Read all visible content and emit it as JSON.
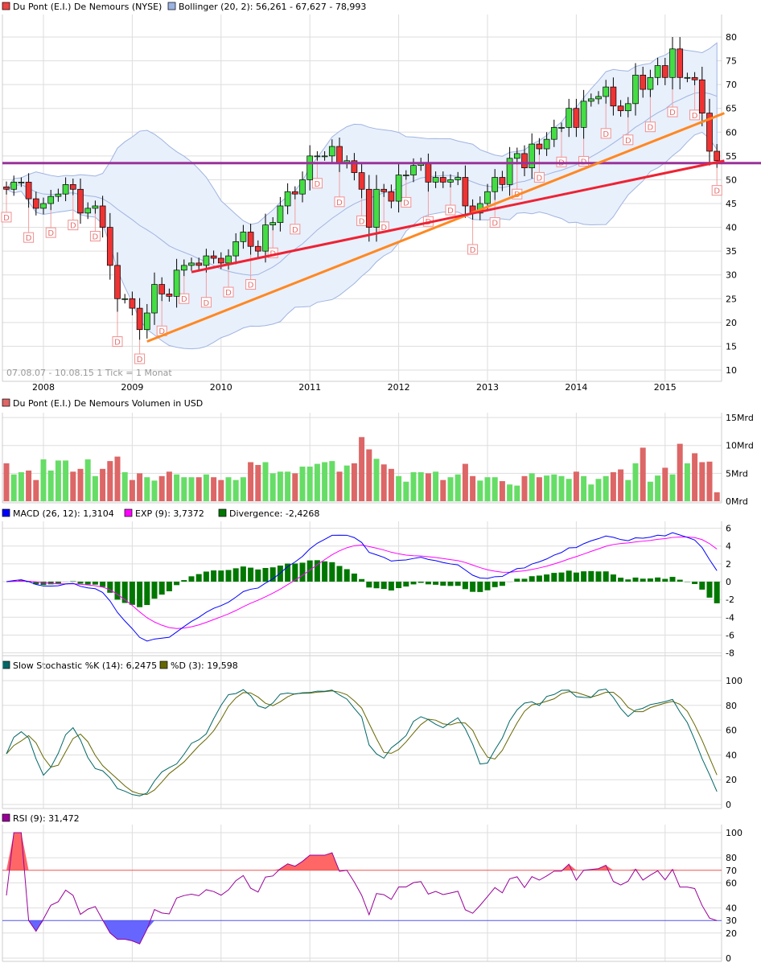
{
  "legends": {
    "price": "Du Pont (E.I.) De Nemours (NYSE)",
    "bollinger": "Bollinger (20, 2): 56,261 - 67,627 - 78,993",
    "volume": "Du Pont (E.I.) De Nemours Volumen in USD",
    "macd": "MACD (26, 12): 1,3104",
    "exp": "EXP (9): 3,7372",
    "divergence": "Divergence: -2,4268",
    "stoch_k": "Slow Stochastic %K (14): 6,2475",
    "stoch_d": "%D (3): 19,598",
    "rsi": "RSI (9): 31,472"
  },
  "range_note": "07.08.07 - 10.08.15   1 Tick = 1 Monat",
  "dividend_marker": "D",
  "colors": {
    "up": "#44dd44",
    "down": "#ee3333",
    "vol_up": "#66dd66",
    "vol_down": "#dd6666",
    "band_fill": "#e8f0fc",
    "band_line": "#a0b4e0",
    "macd": "#0000ff",
    "exp": "#ff00ff",
    "divergence": "#007700",
    "stoch_k": "#006666",
    "stoch_d": "#666600",
    "rsi": "#990099",
    "support": "#993399",
    "trend_orange": "#ff8822",
    "trend_red": "#ee2233"
  },
  "chart_data": [
    {
      "type": "candlestick",
      "start_month": "2007-08",
      "frequency": "monthly",
      "x_ticks": [
        "2008",
        "2009",
        "2010",
        "2011",
        "2012",
        "2013",
        "2014",
        "2015"
      ],
      "y_ticks": [
        10,
        15,
        20,
        25,
        30,
        35,
        40,
        45,
        50,
        55,
        60,
        65,
        70,
        75,
        80
      ],
      "ylim": [
        10,
        82
      ],
      "close": [
        48,
        49.5,
        49.5,
        46,
        44,
        45,
        46.5,
        47,
        49,
        48,
        43,
        44,
        44.5,
        40,
        32,
        25,
        25,
        23,
        18.5,
        22,
        28,
        26,
        25.5,
        31,
        32,
        32.5,
        32,
        34,
        33.5,
        32.5,
        34,
        37,
        39,
        36,
        35,
        40.5,
        41,
        44.5,
        47.5,
        47,
        50,
        55,
        55,
        55,
        57,
        53.5,
        54,
        51.5,
        48,
        40,
        48,
        47.5,
        45.5,
        51,
        51,
        53,
        53.5,
        49.5,
        50.5,
        49.5,
        50,
        50.5,
        44.5,
        43,
        45,
        47.5,
        50.5,
        49,
        54.5,
        55.5,
        52.5,
        57.5,
        56.5,
        58.5,
        61,
        61,
        65,
        61,
        66.5,
        67,
        67.5,
        69.5,
        65.5,
        64.5,
        66,
        72,
        69,
        71.5,
        74,
        71.5,
        77.5,
        71.5,
        71.5,
        71,
        64,
        56,
        54
      ],
      "overlays": {
        "bollinger": {
          "period": 20,
          "stddev": 2
        },
        "horizontal_line": 53.5,
        "trendlines": [
          {
            "color": "orange",
            "from": [
              "2009-03",
              16
            ],
            "to": [
              "2015-09",
              64
            ]
          },
          {
            "color": "red",
            "from": [
              "2009-09",
              30.6
            ],
            "to": [
              "2015-09",
              54
            ]
          }
        ]
      }
    },
    {
      "type": "bar",
      "title": "Du Pont (E.I.) De Nemours Volumen in USD",
      "unit": "Mrd",
      "y_ticks": [
        "0Mrd",
        "5Mrd",
        "10Mrd",
        "15Mrd"
      ],
      "ylim": [
        0,
        15
      ],
      "values": [
        6.8,
        4.8,
        5.2,
        5.5,
        3.8,
        7.5,
        5.5,
        7.3,
        7.3,
        5.3,
        5.8,
        7.5,
        4.5,
        5.8,
        7.2,
        8.0,
        5.2,
        3.8,
        5.0,
        4.3,
        3.7,
        4.5,
        5.3,
        4.8,
        4.3,
        4.3,
        4.3,
        4.8,
        4.3,
        3.8,
        4.3,
        3.8,
        4.3,
        7.0,
        6.5,
        7.0,
        5.0,
        5.3,
        5.3,
        5.0,
        6.2,
        6.2,
        6.7,
        7.0,
        7.2,
        5.3,
        6.4,
        6.8,
        11.5,
        9.3,
        7.6,
        6.6,
        5.8,
        4.5,
        3.5,
        5.2,
        5.2,
        5.0,
        5.3,
        3.8,
        4.3,
        4.8,
        6.7,
        4.5,
        3.7,
        4.3,
        4.3,
        3.6,
        3.0,
        2.8,
        4.5,
        5.0,
        4.3,
        4.6,
        4.8,
        4.5,
        4.0,
        5.3,
        4.5,
        3.0,
        4.0,
        4.5,
        5.2,
        5.7,
        3.8,
        6.8,
        9.6,
        3.5,
        4.6,
        6.0,
        4.8,
        10.3,
        6.8,
        8.6,
        7.0,
        7.1,
        1.6
      ]
    },
    {
      "type": "line",
      "title": "MACD (26, 12)",
      "y_ticks": [
        -8,
        -6,
        -4,
        -2,
        0,
        2,
        4,
        6
      ],
      "ylim": [
        -8,
        6
      ]
    },
    {
      "type": "line",
      "title": "Slow Stochastic %K (14), %D (3)",
      "y_ticks": [
        0,
        20,
        40,
        60,
        80,
        100
      ],
      "ylim": [
        0,
        100
      ]
    },
    {
      "type": "line",
      "title": "RSI (9)",
      "y_ticks": [
        0,
        20,
        40,
        60,
        80,
        100
      ],
      "levels": [
        70,
        30
      ],
      "ylim": [
        0,
        100
      ]
    }
  ]
}
